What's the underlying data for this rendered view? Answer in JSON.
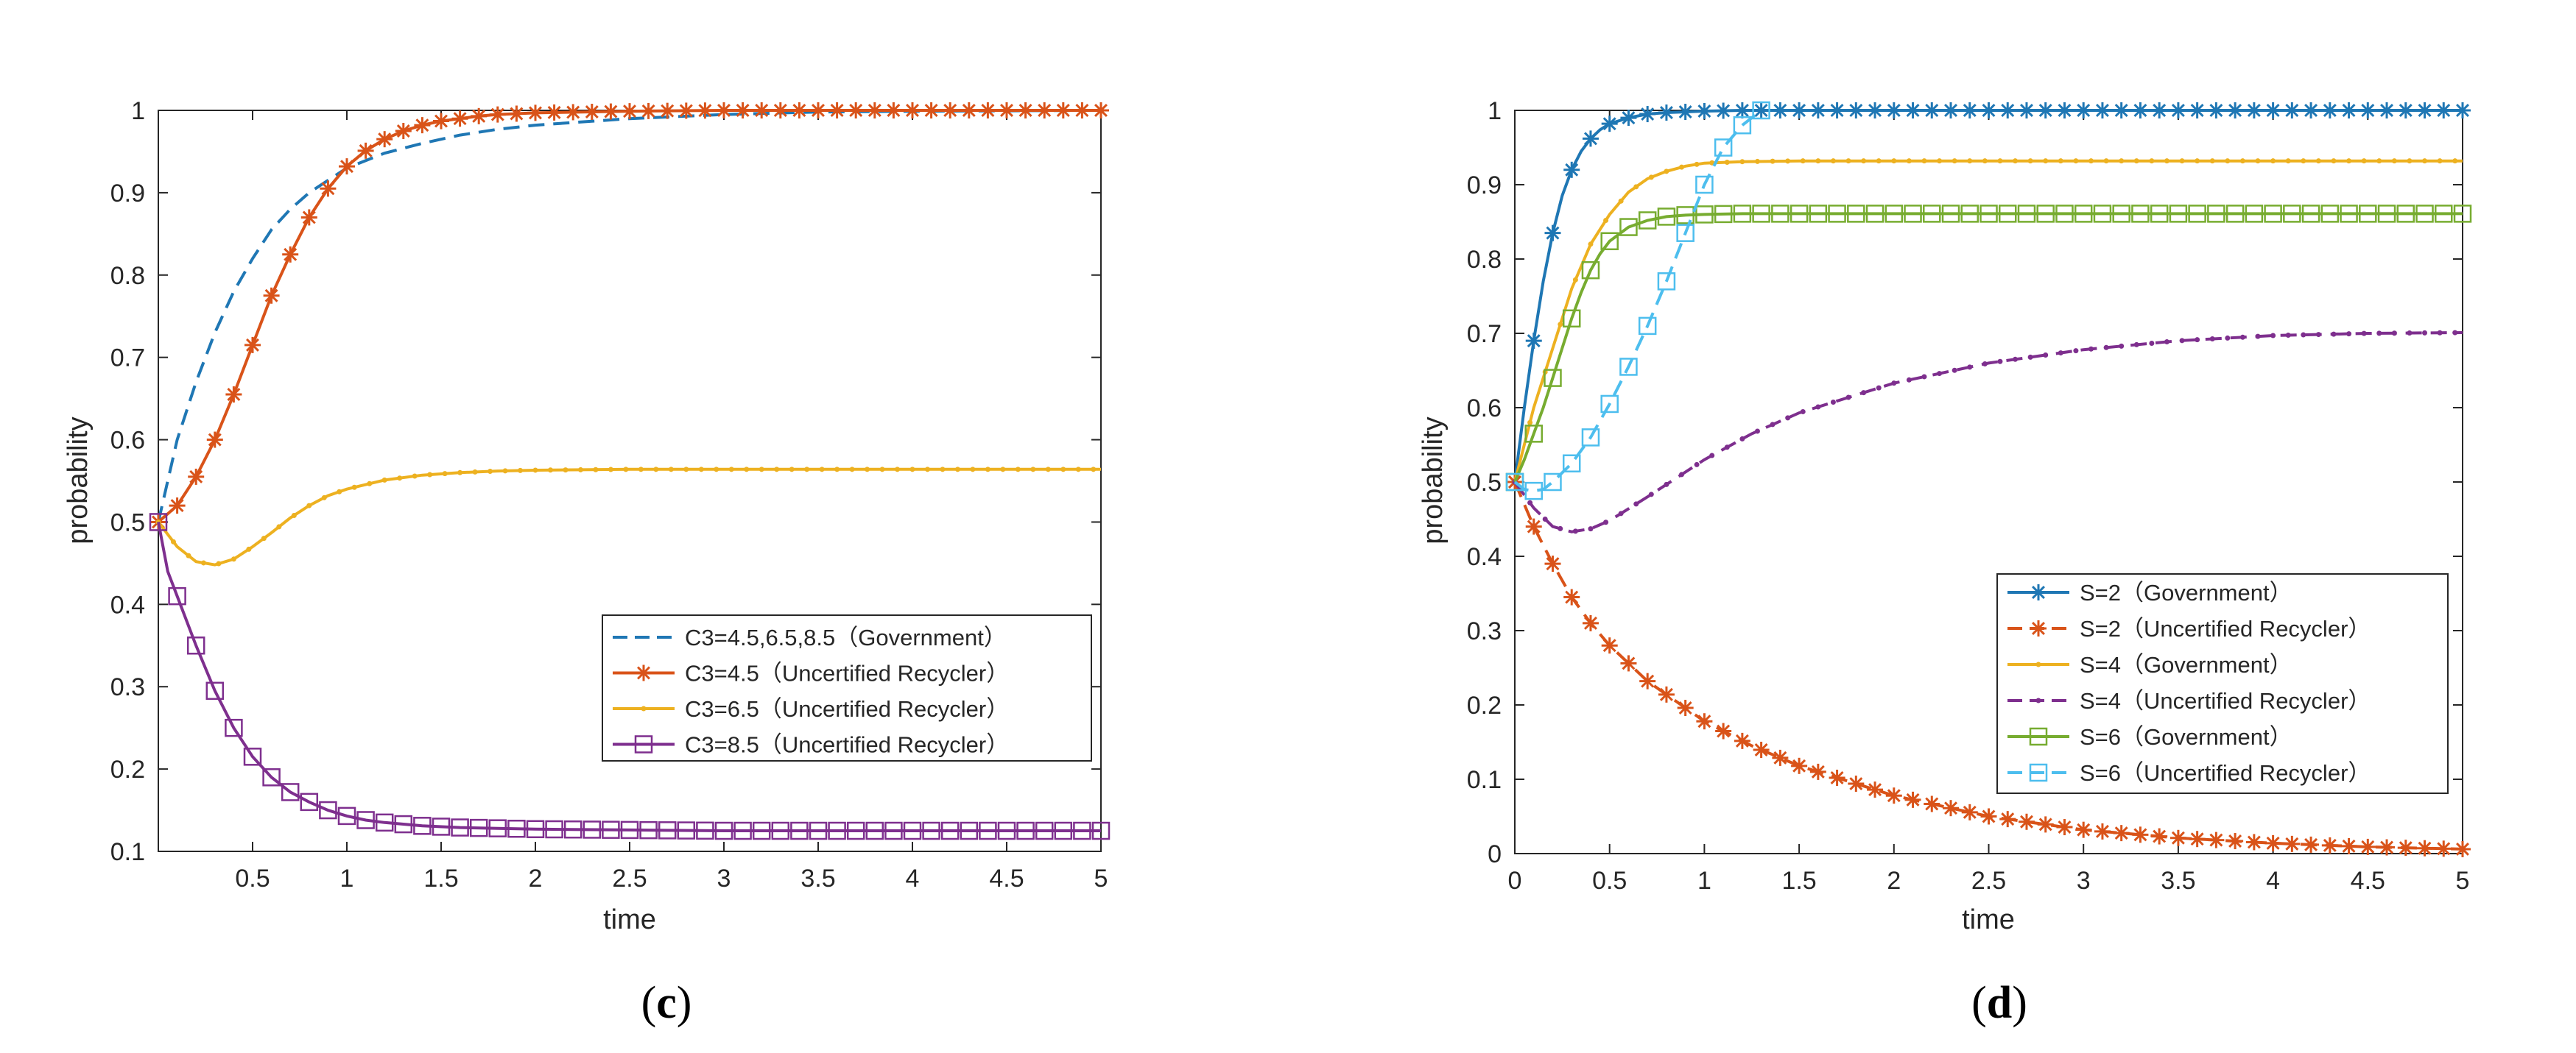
{
  "colors": {
    "blue": "#1f77b4",
    "orange": "#d95319",
    "yellow": "#edb120",
    "purple": "#7e2f8e",
    "green": "#77ac30",
    "cyan": "#4dbeee",
    "axis": "#262626"
  },
  "chart_data": [
    {
      "id": "c",
      "type": "line",
      "caption": {
        "open": "(",
        "letter": "c",
        "close": ")"
      },
      "xlabel": "time",
      "ylabel": "probability",
      "xlim": [
        0,
        5
      ],
      "ylim": [
        0.1,
        1
      ],
      "xticks": [
        0.5,
        1,
        1.5,
        2,
        2.5,
        3,
        3.5,
        4,
        4.5,
        5
      ],
      "xtick_labels": [
        "0.5",
        "1",
        "1.5",
        "2",
        "2.5",
        "3",
        "3.5",
        "4",
        "4.5",
        "5"
      ],
      "yticks": [
        0.1,
        0.2,
        0.3,
        0.4,
        0.5,
        0.6,
        0.7,
        0.8,
        0.9,
        1
      ],
      "ytick_labels": [
        "0.1",
        "0.2",
        "0.3",
        "0.4",
        "0.5",
        "0.6",
        "0.7",
        "0.8",
        "0.9",
        "1"
      ],
      "legend_position": "bottom-right",
      "series": [
        {
          "name": "C3=4.5,6.5,8.5（Government）",
          "color": "blue",
          "dash": "dashed",
          "marker": "none",
          "x": [
            0,
            0.1,
            0.2,
            0.3,
            0.4,
            0.5,
            0.6,
            0.7,
            0.8,
            0.9,
            1.0,
            1.2,
            1.4,
            1.6,
            1.8,
            2.0,
            2.5,
            3.0,
            3.5,
            4.0,
            5.0
          ],
          "values": [
            0.5,
            0.6,
            0.67,
            0.73,
            0.78,
            0.82,
            0.855,
            0.88,
            0.9,
            0.915,
            0.93,
            0.948,
            0.96,
            0.97,
            0.977,
            0.982,
            0.99,
            0.995,
            0.998,
            0.999,
            1.0
          ]
        },
        {
          "name": "C3=4.5（Uncertified Recycler）",
          "color": "orange",
          "dash": "solid",
          "marker": "star",
          "x": [
            0,
            0.1,
            0.2,
            0.3,
            0.4,
            0.5,
            0.6,
            0.7,
            0.8,
            0.9,
            1.0,
            1.1,
            1.2,
            1.3,
            1.4,
            1.5,
            1.6,
            1.7,
            1.8,
            2.0,
            2.5,
            3.0,
            5.0
          ],
          "values": [
            0.5,
            0.52,
            0.555,
            0.6,
            0.655,
            0.715,
            0.775,
            0.825,
            0.87,
            0.905,
            0.932,
            0.951,
            0.965,
            0.975,
            0.982,
            0.987,
            0.99,
            0.993,
            0.995,
            0.997,
            0.999,
            1.0,
            1.0
          ]
        },
        {
          "name": "C3=6.5（Uncertified Recycler）",
          "color": "yellow",
          "dash": "solid",
          "marker": "dot",
          "x": [
            0,
            0.1,
            0.2,
            0.3,
            0.4,
            0.5,
            0.6,
            0.7,
            0.8,
            0.9,
            1.0,
            1.2,
            1.4,
            1.6,
            1.8,
            2.0,
            2.5,
            3.0,
            5.0
          ],
          "values": [
            0.5,
            0.47,
            0.452,
            0.448,
            0.455,
            0.47,
            0.487,
            0.505,
            0.52,
            0.532,
            0.54,
            0.551,
            0.557,
            0.56,
            0.562,
            0.563,
            0.564,
            0.564,
            0.564
          ]
        },
        {
          "name": "C3=8.5（Uncertified Recycler）",
          "color": "purple",
          "dash": "solid",
          "marker": "square",
          "x": [
            0,
            0.05,
            0.1,
            0.2,
            0.3,
            0.4,
            0.5,
            0.6,
            0.7,
            0.8,
            0.9,
            1.0,
            1.1,
            1.2,
            1.4,
            1.6,
            1.8,
            2.0,
            2.5,
            3.0,
            5.0
          ],
          "values": [
            0.5,
            0.44,
            0.41,
            0.35,
            0.295,
            0.25,
            0.215,
            0.19,
            0.172,
            0.16,
            0.15,
            0.143,
            0.138,
            0.135,
            0.131,
            0.129,
            0.128,
            0.127,
            0.126,
            0.125,
            0.125
          ]
        }
      ]
    },
    {
      "id": "d",
      "type": "line",
      "caption": {
        "open": "(",
        "letter": "d",
        "close": ")"
      },
      "xlabel": "time",
      "ylabel": "probability",
      "xlim": [
        0,
        5
      ],
      "ylim": [
        0,
        1
      ],
      "xticks": [
        0,
        0.5,
        1,
        1.5,
        2,
        2.5,
        3,
        3.5,
        4,
        4.5,
        5
      ],
      "xtick_labels": [
        "0",
        "0.5",
        "1",
        "1.5",
        "2",
        "2.5",
        "3",
        "3.5",
        "4",
        "4.5",
        "5"
      ],
      "yticks": [
        0,
        0.1,
        0.2,
        0.3,
        0.4,
        0.5,
        0.6,
        0.7,
        0.8,
        0.9,
        1
      ],
      "ytick_labels": [
        "0",
        "0.1",
        "0.2",
        "0.3",
        "0.4",
        "0.5",
        "0.6",
        "0.7",
        "0.8",
        "0.9",
        "1"
      ],
      "legend_position": "bottom-right",
      "series": [
        {
          "name": "S=2（Government）",
          "color": "blue",
          "dash": "solid",
          "marker": "star",
          "x": [
            0,
            0.05,
            0.1,
            0.15,
            0.2,
            0.25,
            0.3,
            0.35,
            0.4,
            0.45,
            0.5,
            0.6,
            0.7,
            0.8,
            0.9,
            1.0,
            1.2,
            1.5,
            2.0,
            3.0,
            5.0
          ],
          "values": [
            0.5,
            0.6,
            0.69,
            0.77,
            0.835,
            0.885,
            0.92,
            0.945,
            0.962,
            0.974,
            0.982,
            0.99,
            0.995,
            0.997,
            0.998,
            0.999,
            1.0,
            1.0,
            1.0,
            1.0,
            1.0
          ]
        },
        {
          "name": "S=2（Uncertified Recycler）",
          "color": "orange",
          "dash": "dashed",
          "marker": "star",
          "x": [
            0,
            0.1,
            0.2,
            0.3,
            0.4,
            0.5,
            0.7,
            1.0,
            1.25,
            1.5,
            2.0,
            2.5,
            3.0,
            3.5,
            4.0,
            4.5,
            5.0
          ],
          "values": [
            0.5,
            0.44,
            0.39,
            0.345,
            0.31,
            0.28,
            0.232,
            0.178,
            0.145,
            0.118,
            0.078,
            0.05,
            0.032,
            0.021,
            0.014,
            0.009,
            0.006
          ]
        },
        {
          "name": "S=4（Government）",
          "color": "yellow",
          "dash": "solid",
          "marker": "dot",
          "x": [
            0,
            0.1,
            0.2,
            0.3,
            0.4,
            0.5,
            0.6,
            0.7,
            0.8,
            0.9,
            1.0,
            1.2,
            1.5,
            2.0,
            5.0
          ],
          "values": [
            0.5,
            0.6,
            0.68,
            0.76,
            0.82,
            0.86,
            0.89,
            0.908,
            0.918,
            0.925,
            0.929,
            0.931,
            0.932,
            0.932,
            0.932
          ]
        },
        {
          "name": "S=4（Uncertified Recycler）",
          "color": "purple",
          "dash": "dashed",
          "marker": "dot",
          "x": [
            0,
            0.1,
            0.2,
            0.3,
            0.4,
            0.5,
            0.7,
            1.0,
            1.25,
            1.5,
            2.0,
            2.5,
            3.0,
            3.5,
            4.0,
            4.5,
            5.0
          ],
          "values": [
            0.5,
            0.465,
            0.44,
            0.433,
            0.437,
            0.448,
            0.48,
            0.53,
            0.565,
            0.593,
            0.633,
            0.66,
            0.678,
            0.69,
            0.697,
            0.7,
            0.701
          ]
        },
        {
          "name": "S=6（Government）",
          "color": "green",
          "dash": "solid",
          "marker": "square",
          "x": [
            0,
            0.05,
            0.1,
            0.15,
            0.2,
            0.25,
            0.3,
            0.35,
            0.4,
            0.45,
            0.5,
            0.6,
            0.7,
            0.8,
            0.9,
            1.0,
            1.2,
            1.5,
            2.0,
            5.0
          ],
          "values": [
            0.5,
            0.53,
            0.565,
            0.6,
            0.64,
            0.68,
            0.72,
            0.755,
            0.785,
            0.807,
            0.824,
            0.843,
            0.852,
            0.857,
            0.859,
            0.86,
            0.861,
            0.861,
            0.861,
            0.861
          ]
        },
        {
          "name": "S=6（Uncertified Recycler）",
          "color": "cyan",
          "dash": "dashed",
          "marker": "square",
          "x": [
            0,
            0.05,
            0.1,
            0.15,
            0.2,
            0.3,
            0.4,
            0.5,
            0.6,
            0.7,
            0.8,
            0.9,
            1.0,
            1.1,
            1.2,
            1.3
          ],
          "values": [
            0.5,
            0.49,
            0.488,
            0.49,
            0.5,
            0.525,
            0.56,
            0.605,
            0.655,
            0.71,
            0.77,
            0.835,
            0.9,
            0.95,
            0.98,
            1.0
          ]
        }
      ]
    }
  ]
}
